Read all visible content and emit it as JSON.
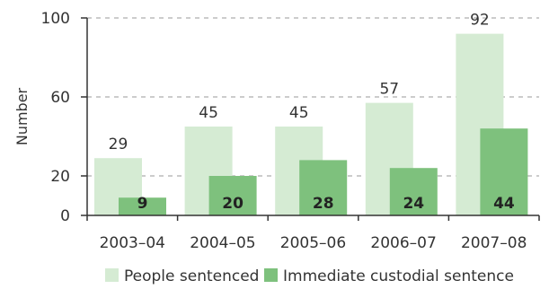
{
  "chart_data": {
    "type": "bar",
    "categories": [
      "2003–04",
      "2004–05",
      "2005–06",
      "2006–07",
      "2007–08"
    ],
    "series": [
      {
        "name": "People sentenced",
        "values": [
          29,
          45,
          45,
          57,
          92
        ],
        "color": "#d5ebd3"
      },
      {
        "name": "Immediate custodial sentence",
        "values": [
          9,
          20,
          28,
          24,
          44
        ],
        "color": "#7ec17d"
      }
    ],
    "ylabel": "Number",
    "ylim": [
      0,
      100
    ],
    "yticks": [
      0,
      20,
      60,
      100
    ],
    "grid": "dashed horizontal",
    "legend_position": "bottom"
  }
}
